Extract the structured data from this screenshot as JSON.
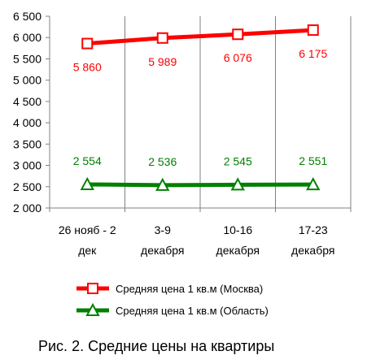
{
  "chart_data": {
    "type": "line",
    "categories": [
      [
        "26 нояб - 2",
        "дек"
      ],
      [
        "3-9",
        "декабря"
      ],
      [
        "10-16",
        "декабря"
      ],
      [
        "17-23",
        "декабря"
      ]
    ],
    "series": [
      {
        "name": "Средняя цена 1 кв.м (Москва)",
        "values": [
          5860,
          5989,
          6076,
          6175
        ],
        "labels": [
          "5 860",
          "5 989",
          "6 076",
          "6 175"
        ],
        "color": "#ff0000",
        "marker": "square",
        "label_position": "below"
      },
      {
        "name": "Средняя цена 1 кв.м (Область)",
        "values": [
          2554,
          2536,
          2545,
          2551
        ],
        "labels": [
          "2 554",
          "2 536",
          "2 545",
          "2 551"
        ],
        "color": "#008000",
        "marker": "triangle",
        "label_position": "above"
      }
    ],
    "ylim": [
      2000,
      6500
    ],
    "yticks": [
      2000,
      2500,
      3000,
      3500,
      4000,
      4500,
      5000,
      5500,
      6000,
      6500
    ],
    "ytick_labels": [
      "2 000",
      "2 500",
      "3 000",
      "3 500",
      "4 000",
      "4 500",
      "5 000",
      "5 500",
      "6 000",
      "6 500"
    ],
    "grid": "vertical",
    "legend_position": "bottom"
  },
  "caption": "Рис. 2. Средние цены на квартиры"
}
